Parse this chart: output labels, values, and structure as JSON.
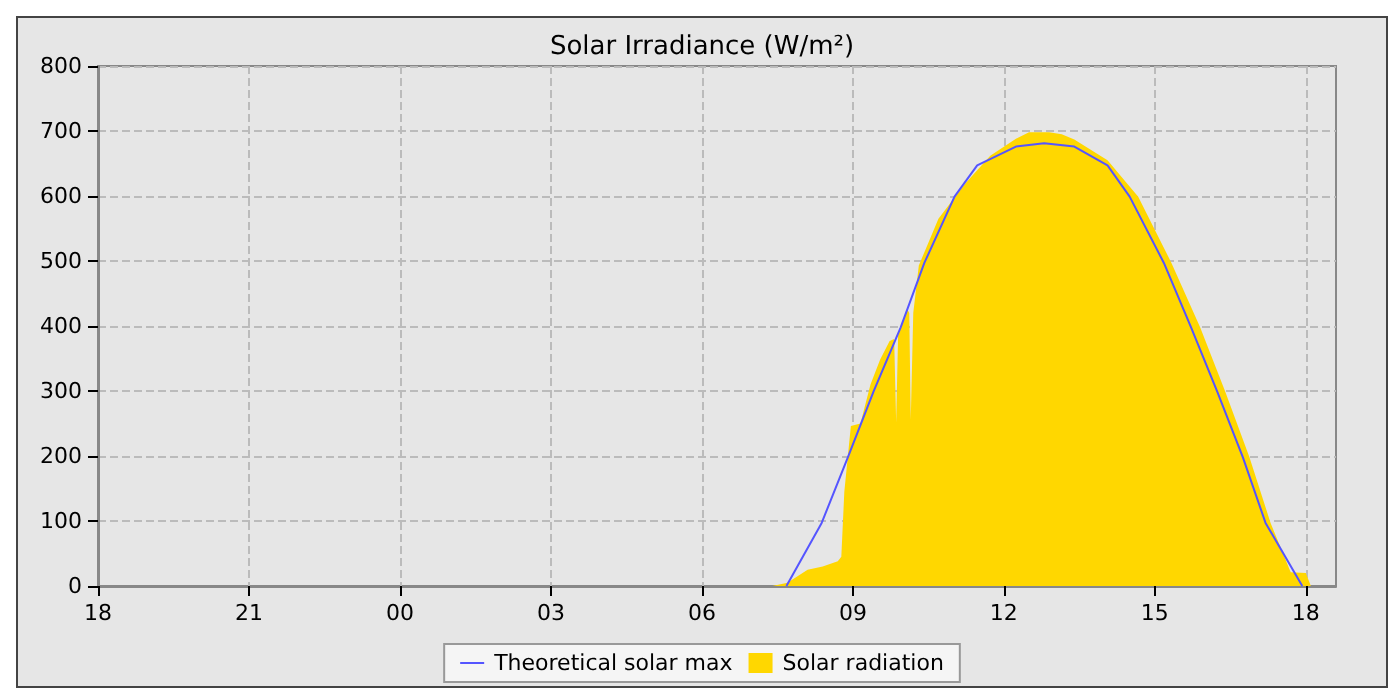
{
  "chart_data": {
    "type": "area",
    "title": "Solar Irradiance (W/m²)",
    "xlim": [
      18,
      42.6
    ],
    "xticks": [
      {
        "value": 18,
        "label": "18"
      },
      {
        "value": 21,
        "label": "21"
      },
      {
        "value": 24,
        "label": "00"
      },
      {
        "value": 27,
        "label": "03"
      },
      {
        "value": 30,
        "label": "06"
      },
      {
        "value": 33,
        "label": "09"
      },
      {
        "value": 36,
        "label": "12"
      },
      {
        "value": 39,
        "label": "15"
      },
      {
        "value": 42,
        "label": "18"
      }
    ],
    "ylim": [
      0,
      800
    ],
    "yticks": [
      0,
      100,
      200,
      300,
      400,
      500,
      600,
      700,
      800
    ],
    "grid": true,
    "legend": "bottom",
    "marker": "none",
    "series": [
      {
        "name": "Theoretical solar max",
        "type": "line",
        "color": "#5555ff",
        "x": [
          31.68,
          32.38,
          32.9,
          33.41,
          33.95,
          34.42,
          35.02,
          35.47,
          36.24,
          36.8,
          37.4,
          38.06,
          38.5,
          39.18,
          39.72,
          40.24,
          40.75,
          41.2,
          41.93
        ],
        "values": [
          0,
          97,
          198,
          299,
          398,
          497,
          599,
          647,
          676,
          681,
          676,
          647,
          599,
          497,
          398,
          299,
          198,
          97,
          0
        ]
      },
      {
        "name": "Solar radiation",
        "type": "area",
        "color": "#ffd700",
        "x": [
          31.4,
          31.7,
          31.9,
          32.1,
          32.4,
          32.7,
          32.77,
          32.83,
          32.96,
          33.15,
          33.35,
          33.54,
          33.73,
          33.82,
          33.86,
          33.9,
          33.95,
          34.08,
          34.12,
          34.15,
          34.2,
          34.31,
          34.44,
          34.7,
          35.22,
          35.73,
          36.24,
          36.5,
          36.9,
          37.15,
          37.4,
          38.06,
          38.67,
          39.33,
          39.9,
          40.4,
          40.88,
          41.3,
          41.6,
          41.7,
          42.0,
          42.1
        ],
        "values": [
          0,
          5,
          15,
          25,
          30,
          38,
          45,
          145,
          246,
          250,
          310,
          348,
          377,
          380,
          252,
          390,
          397,
          426,
          420,
          256,
          420,
          493,
          517,
          565,
          618,
          662,
          688,
          698,
          698,
          695,
          687,
          655,
          599,
          497,
          398,
          299,
          198,
          97,
          40,
          21,
          20,
          0
        ]
      }
    ]
  }
}
